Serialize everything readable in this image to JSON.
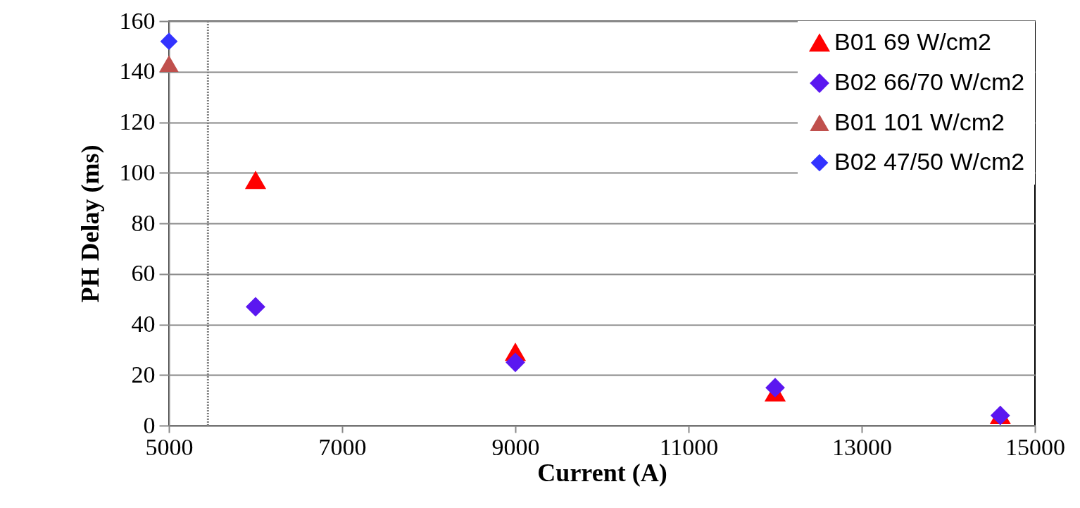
{
  "chart_data": {
    "type": "scatter",
    "xlabel": "Current (A)",
    "ylabel": "PH Delay (ms)",
    "xlim": [
      5000,
      15000
    ],
    "xticks": [
      5000,
      7000,
      9000,
      11000,
      13000,
      15000
    ],
    "ylim": [
      0,
      160
    ],
    "yticks": [
      0,
      20,
      40,
      60,
      80,
      100,
      120,
      140,
      160
    ],
    "grid": "y",
    "legend": "top right",
    "series": [
      {
        "name": "B01 69 W/cm2",
        "color": "#ff0000",
        "marker": "triangle",
        "x": [
          6000,
          9000,
          12000,
          14600
        ],
        "values": [
          97,
          29,
          13,
          4
        ]
      },
      {
        "name": "B02 66/70 W/cm2",
        "color": "#5b17f0",
        "marker": "diamond",
        "x": [
          6000,
          9000,
          12000,
          14600
        ],
        "values": [
          47,
          25,
          15,
          4
        ]
      },
      {
        "name": "B01 101 W/cm2",
        "color": "#c0504d",
        "marker": "triangle",
        "x": [
          5000
        ],
        "values": [
          143
        ]
      },
      {
        "name": "B02 47/50 W/cm2",
        "color": "#3333ff",
        "marker": "diamond",
        "x": [
          5000
        ],
        "values": [
          152
        ]
      }
    ],
    "ref_lines": [
      {
        "axis": "x",
        "value": 5450,
        "color": "#808080",
        "line_style": "dotted"
      }
    ]
  }
}
